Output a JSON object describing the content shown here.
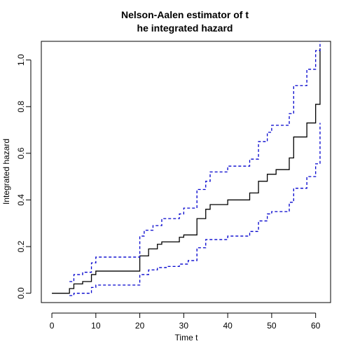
{
  "chart_data": {
    "type": "line",
    "title_lines": [
      "Nelson-Aalen estimator of t",
      "he integrated hazard"
    ],
    "xlabel": "Time t",
    "ylabel": "Integrated hazard",
    "xlim": [
      -2.4,
      63.4
    ],
    "ylim": [
      -0.04,
      1.08
    ],
    "xticks": [
      0,
      10,
      20,
      30,
      40,
      50,
      60
    ],
    "yticks": [
      0.0,
      0.2,
      0.4,
      0.6,
      0.8,
      1.0
    ],
    "ytick_labels": [
      "0.0",
      "0.2",
      "0.4",
      "0.6",
      "0.8",
      "1.0"
    ],
    "series": [
      {
        "name": "estimate",
        "color": "#000000",
        "style": "solid",
        "points": [
          [
            0,
            0.0
          ],
          [
            4,
            0.0
          ],
          [
            4,
            0.02
          ],
          [
            5,
            0.02
          ],
          [
            5,
            0.04
          ],
          [
            7,
            0.04
          ],
          [
            7,
            0.05
          ],
          [
            9,
            0.05
          ],
          [
            9,
            0.08
          ],
          [
            10,
            0.08
          ],
          [
            10,
            0.095
          ],
          [
            20,
            0.095
          ],
          [
            20,
            0.16
          ],
          [
            22,
            0.16
          ],
          [
            22,
            0.19
          ],
          [
            24,
            0.19
          ],
          [
            24,
            0.21
          ],
          [
            25,
            0.21
          ],
          [
            25,
            0.22
          ],
          [
            29,
            0.22
          ],
          [
            29,
            0.24
          ],
          [
            30,
            0.24
          ],
          [
            30,
            0.25
          ],
          [
            33,
            0.25
          ],
          [
            33,
            0.32
          ],
          [
            35,
            0.32
          ],
          [
            35,
            0.36
          ],
          [
            36,
            0.36
          ],
          [
            36,
            0.38
          ],
          [
            40,
            0.38
          ],
          [
            40,
            0.4
          ],
          [
            45,
            0.4
          ],
          [
            45,
            0.43
          ],
          [
            47,
            0.43
          ],
          [
            47,
            0.48
          ],
          [
            49,
            0.48
          ],
          [
            49,
            0.51
          ],
          [
            51,
            0.51
          ],
          [
            51,
            0.53
          ],
          [
            54,
            0.53
          ],
          [
            54,
            0.58
          ],
          [
            55,
            0.58
          ],
          [
            55,
            0.67
          ],
          [
            58,
            0.67
          ],
          [
            58,
            0.73
          ],
          [
            60,
            0.73
          ],
          [
            60,
            0.81
          ],
          [
            61,
            0.81
          ],
          [
            61,
            1.05
          ]
        ]
      },
      {
        "name": "upper confidence limit",
        "color": "#0000CD",
        "style": "dashed",
        "points": [
          [
            4,
            0.05
          ],
          [
            5,
            0.05
          ],
          [
            5,
            0.08
          ],
          [
            7,
            0.08
          ],
          [
            7,
            0.09
          ],
          [
            9,
            0.09
          ],
          [
            9,
            0.13
          ],
          [
            10,
            0.13
          ],
          [
            10,
            0.155
          ],
          [
            20,
            0.155
          ],
          [
            20,
            0.245
          ],
          [
            21,
            0.245
          ],
          [
            21,
            0.27
          ],
          [
            23,
            0.27
          ],
          [
            23,
            0.29
          ],
          [
            25,
            0.29
          ],
          [
            25,
            0.32
          ],
          [
            29,
            0.32
          ],
          [
            29,
            0.34
          ],
          [
            30,
            0.34
          ],
          [
            30,
            0.365
          ],
          [
            33,
            0.365
          ],
          [
            33,
            0.445
          ],
          [
            35,
            0.445
          ],
          [
            35,
            0.48
          ],
          [
            36,
            0.48
          ],
          [
            36,
            0.52
          ],
          [
            40,
            0.52
          ],
          [
            40,
            0.545
          ],
          [
            45,
            0.545
          ],
          [
            45,
            0.575
          ],
          [
            47,
            0.575
          ],
          [
            47,
            0.65
          ],
          [
            49,
            0.65
          ],
          [
            49,
            0.69
          ],
          [
            50,
            0.69
          ],
          [
            50,
            0.72
          ],
          [
            54,
            0.72
          ],
          [
            54,
            0.77
          ],
          [
            55,
            0.77
          ],
          [
            55,
            0.89
          ],
          [
            58,
            0.89
          ],
          [
            58,
            0.96
          ],
          [
            60,
            0.96
          ],
          [
            60,
            1.04
          ],
          [
            61,
            1.04
          ],
          [
            61,
            1.08
          ]
        ]
      },
      {
        "name": "lower confidence limit",
        "color": "#0000CD",
        "style": "dashed",
        "points": [
          [
            4,
            -0.01
          ],
          [
            5,
            -0.01
          ],
          [
            5,
            0.0
          ],
          [
            9,
            0.0
          ],
          [
            9,
            0.025
          ],
          [
            10,
            0.025
          ],
          [
            10,
            0.035
          ],
          [
            20,
            0.035
          ],
          [
            20,
            0.08
          ],
          [
            22,
            0.08
          ],
          [
            22,
            0.1
          ],
          [
            24,
            0.1
          ],
          [
            24,
            0.11
          ],
          [
            26,
            0.11
          ],
          [
            26,
            0.115
          ],
          [
            29,
            0.115
          ],
          [
            29,
            0.125
          ],
          [
            31,
            0.125
          ],
          [
            31,
            0.14
          ],
          [
            33,
            0.14
          ],
          [
            33,
            0.195
          ],
          [
            35,
            0.195
          ],
          [
            35,
            0.23
          ],
          [
            40,
            0.23
          ],
          [
            40,
            0.245
          ],
          [
            45,
            0.245
          ],
          [
            45,
            0.265
          ],
          [
            47,
            0.265
          ],
          [
            47,
            0.31
          ],
          [
            49,
            0.31
          ],
          [
            49,
            0.34
          ],
          [
            50,
            0.34
          ],
          [
            50,
            0.35
          ],
          [
            54,
            0.35
          ],
          [
            54,
            0.39
          ],
          [
            55,
            0.39
          ],
          [
            55,
            0.45
          ],
          [
            58,
            0.45
          ],
          [
            58,
            0.5
          ],
          [
            60,
            0.5
          ],
          [
            60,
            0.555
          ],
          [
            61,
            0.555
          ],
          [
            61,
            0.73
          ]
        ]
      }
    ]
  }
}
